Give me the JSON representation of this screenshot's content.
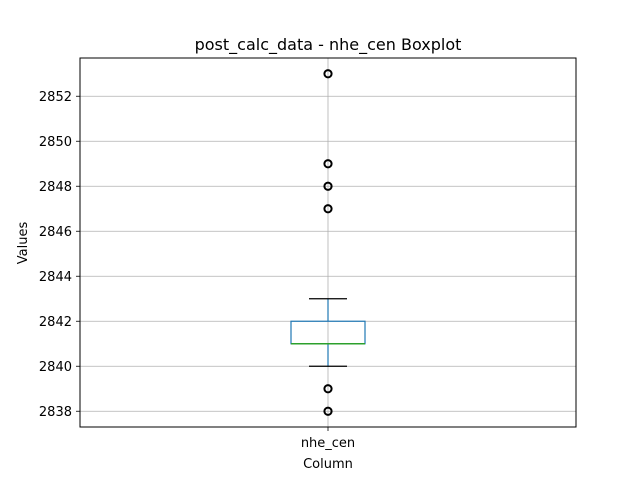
{
  "chart_data": {
    "type": "boxplot",
    "title": "post_calc_data - nhe_cen Boxplot",
    "xlabel": "Column",
    "ylabel": "Values",
    "categories": [
      "nhe_cen"
    ],
    "ylim": [
      2837.3,
      2853.7
    ],
    "yticks": [
      2838,
      2840,
      2842,
      2844,
      2846,
      2848,
      2850,
      2852
    ],
    "grid": true,
    "series": [
      {
        "category": "nhe_cen",
        "whisker_low": 2840,
        "q1": 2841,
        "median": 2841,
        "q3": 2842,
        "whisker_high": 2843,
        "outliers": [
          2838,
          2839,
          2847,
          2848,
          2849,
          2853
        ]
      }
    ],
    "colors": {
      "box": "#1f77b4",
      "median": "#2ca02c",
      "whisker": "#000000",
      "grid": "#b0b0b0",
      "outlier": "#000000"
    }
  }
}
